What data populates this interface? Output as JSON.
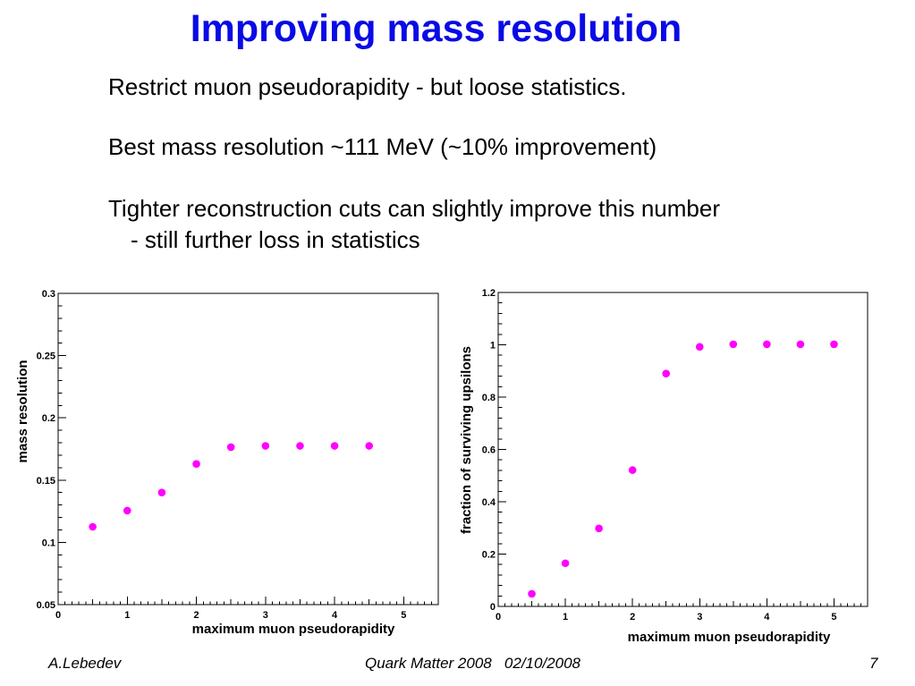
{
  "slide": {
    "title": "Improving mass resolution",
    "lines": [
      "Restrict muon pseudorapidity -  but loose statistics.",
      "Best mass resolution ~111 MeV (~10% improvement)",
      "Tighter reconstruction cuts can slightly improve this number",
      "- still further loss in statistics"
    ]
  },
  "footer": {
    "author": "A.Lebedev",
    "event": "Quark Matter 2008   02/10/2008",
    "page": "7"
  },
  "colors": {
    "title": "#0a0ae6",
    "marker": "#ff00ff"
  },
  "chart_data": [
    {
      "type": "scatter",
      "xlabel": "maximum muon pseudorapidity",
      "ylabel": "mass resolution",
      "xlim": [
        0,
        5.5
      ],
      "ylim": [
        0.05,
        0.3
      ],
      "xticks": [
        "0",
        "1",
        "2",
        "3",
        "4",
        "5"
      ],
      "yticks": [
        "0.05",
        "0.1",
        "0.15",
        "0.2",
        "0.25",
        "0.3"
      ],
      "x": [
        0.5,
        1.0,
        1.5,
        2.0,
        2.5,
        3.0,
        3.5,
        4.0,
        4.5
      ],
      "y": [
        0.1125,
        0.1255,
        0.14,
        0.163,
        0.1765,
        0.1775,
        0.1775,
        0.1775,
        0.1775
      ],
      "grid": false,
      "marker_color": "#ff00ff"
    },
    {
      "type": "scatter",
      "xlabel": "maximum muon pseudorapidity",
      "ylabel": "fraction of surviving upsilons",
      "xlim": [
        0,
        5.5
      ],
      "ylim": [
        0,
        1.2
      ],
      "xticks": [
        "0",
        "1",
        "2",
        "3",
        "4",
        "5"
      ],
      "yticks": [
        "0",
        "0.2",
        "0.4",
        "0.6",
        "0.8",
        "1",
        "1.2"
      ],
      "x": [
        0.5,
        1.0,
        1.5,
        2.0,
        2.5,
        3.0,
        3.5,
        4.0,
        4.5,
        5.0
      ],
      "y": [
        0.048,
        0.165,
        0.298,
        0.521,
        0.89,
        0.992,
        1.002,
        1.002,
        1.002,
        1.002
      ],
      "grid": false,
      "marker_color": "#ff00ff"
    }
  ]
}
